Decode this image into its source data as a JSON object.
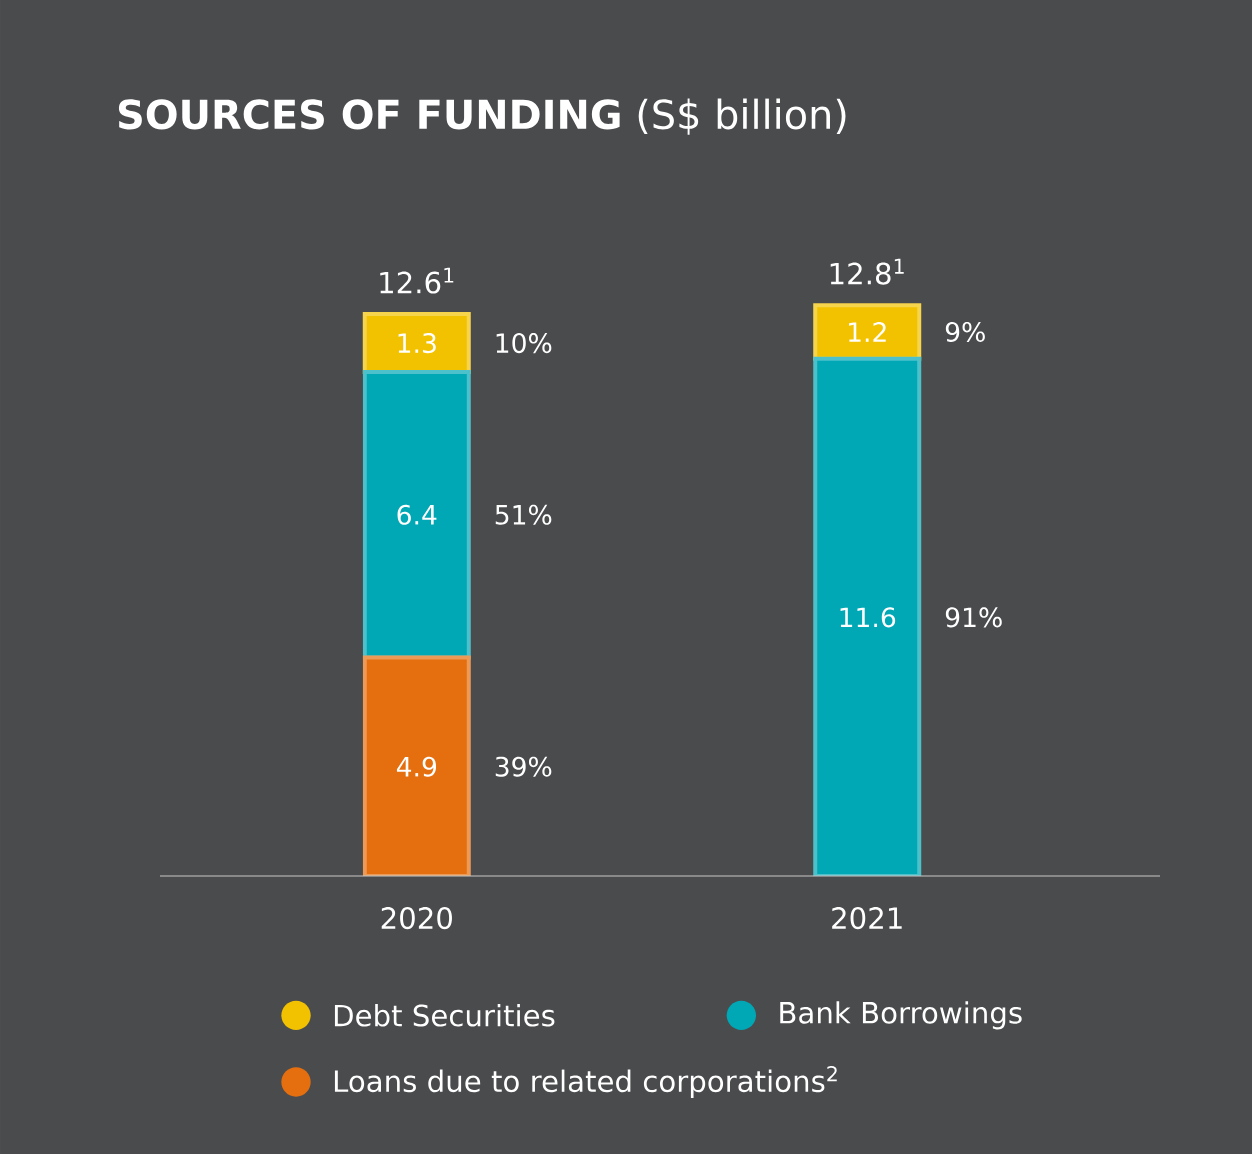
{
  "chart_data": {
    "type": "bar",
    "title": "**SOURCES OF FUNDING** (S$ billion)",
    "categories": [
      "2020",
      "2021"
    ],
    "stacked": true,
    "relative": false,
    "data_labels": true,
    "legend": "bottom",
    "series": [
      {
        "name": "Loans due to related corporations$^{2}$",
        "color": "#e56f0e",
        "values": [
          4.9,
          null
        ]
      },
      {
        "name": "Bank Borrowings",
        "color": "#00a7b5",
        "values": [
          6.4,
          11.6
        ]
      },
      {
        "name": "Debt Securities",
        "color": "#f2c200",
        "values": [
          1.3,
          1.2
        ]
      }
    ],
    "totals": [
      "12.6$^{1}$",
      "12.8$^{1}$"
    ],
    "annotations": [
      "39%",
      "51%",
      "10%",
      "91%",
      "9%"
    ]
  }
}
